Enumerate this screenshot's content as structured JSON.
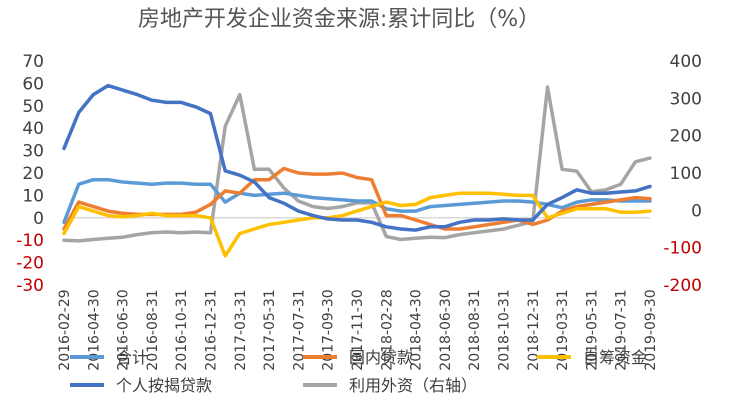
{
  "chart_data": {
    "type": "line",
    "title": "房地产开发企业资金来源:累计同比（%）",
    "left_axis": {
      "ticks": [
        70,
        60,
        50,
        40,
        30,
        20,
        10,
        0,
        -10,
        -20,
        -30
      ],
      "range": [
        -30,
        70
      ],
      "negative_color": "#c00000"
    },
    "right_axis": {
      "ticks": [
        400,
        300,
        200,
        100,
        0,
        -100,
        -200
      ],
      "range": [
        -200,
        400
      ],
      "negative_color": "#c00000"
    },
    "x": [
      "2016-02",
      "2016-03",
      "2016-04",
      "2016-05",
      "2016-06",
      "2016-07",
      "2016-08",
      "2016-09",
      "2016-10",
      "2016-11",
      "2016-12",
      "2017-02",
      "2017-03",
      "2017-04",
      "2017-05",
      "2017-06",
      "2017-07",
      "2017-08",
      "2017-09",
      "2017-10",
      "2017-11",
      "2017-12",
      "2018-02",
      "2018-03",
      "2018-04",
      "2018-05",
      "2018-06",
      "2018-07",
      "2018-08",
      "2018-09",
      "2018-10",
      "2018-11",
      "2018-12",
      "2019-02",
      "2019-03",
      "2019-04",
      "2019-05",
      "2019-06",
      "2019-07",
      "2019-08",
      "2019-09"
    ],
    "x_tick_labels": [
      "2016-02-29",
      "2016-04-30",
      "2016-06-30",
      "2016-08-31",
      "2016-10-31",
      "2016-12-31",
      "2017-03-31",
      "2017-05-31",
      "2017-07-31",
      "2017-09-30",
      "2017-11-30",
      "2018-02-28",
      "2018-04-30",
      "2018-06-30",
      "2018-08-31",
      "2018-10-31",
      "2018-12-31",
      "2019-03-31",
      "2019-05-31",
      "2019-07-31",
      "2019-09-30"
    ],
    "legend_order": [
      "合计",
      "国内贷款",
      "自筹资金",
      "个人按揭贷款",
      "利用外资（右轴）"
    ],
    "series": [
      {
        "name": "合计",
        "axis": "left",
        "color": "#5b9bd5",
        "values": [
          -2,
          15,
          17,
          17,
          16,
          15.5,
          15,
          15.5,
          15.5,
          15,
          15,
          7,
          11,
          10,
          10.5,
          11,
          10,
          9,
          8.5,
          8,
          7.5,
          7.5,
          4,
          3,
          3,
          5,
          5.5,
          6,
          6.5,
          7,
          7.5,
          7.5,
          7,
          6,
          4.5,
          7,
          8,
          8,
          7.5,
          7.5,
          7.5
        ]
      },
      {
        "name": "国内贷款",
        "axis": "left",
        "color": "#ed7d31",
        "values": [
          -5,
          7,
          5,
          3,
          2,
          1.5,
          1.5,
          1.5,
          1.5,
          2.5,
          6,
          12,
          11,
          17,
          17,
          22,
          20,
          19.5,
          19.5,
          20,
          18,
          17,
          1,
          1,
          -1,
          -3,
          -5,
          -5,
          -4,
          -3,
          -2,
          -1,
          -3,
          -1,
          3,
          5,
          6,
          7,
          8,
          9,
          8.5
        ]
      },
      {
        "name": "自筹资金",
        "axis": "left",
        "color": "#ffc000",
        "values": [
          -7,
          5,
          3,
          1,
          0.5,
          1,
          2,
          1,
          1,
          1,
          0,
          -17,
          -7,
          -5,
          -3,
          -2,
          -1,
          0,
          0,
          1,
          3,
          5,
          7,
          5.5,
          6,
          9,
          10,
          11,
          11,
          11,
          10.5,
          10,
          10,
          0,
          2,
          4,
          4,
          4,
          2.5,
          2.5,
          3
        ]
      },
      {
        "name": "个人按揭贷款",
        "axis": "left",
        "color": "#4472c4",
        "values": [
          31,
          47,
          55,
          59,
          57,
          55,
          52.5,
          51.5,
          51.5,
          49.5,
          46.5,
          21,
          19,
          16,
          9,
          6.5,
          3,
          1,
          -0.5,
          -1,
          -1,
          -2,
          -4,
          -5,
          -5.5,
          -4,
          -4,
          -2,
          -1,
          -1,
          -0.5,
          -1,
          -1,
          6,
          9,
          12.5,
          11,
          11,
          11.5,
          12,
          14
        ]
      },
      {
        "name": "利用外资（右轴）",
        "axis": "right",
        "color": "#a5a5a5",
        "values": [
          -80,
          -82,
          -78,
          -75,
          -72,
          -65,
          -60,
          -58,
          -60,
          -58,
          -60,
          225,
          310,
          110,
          110,
          60,
          25,
          10,
          5,
          10,
          20,
          20,
          -70,
          -78,
          -75,
          -72,
          -73,
          -65,
          -60,
          -55,
          -50,
          -40,
          -30,
          330,
          110,
          105,
          50,
          55,
          70,
          130,
          140
        ]
      }
    ]
  }
}
